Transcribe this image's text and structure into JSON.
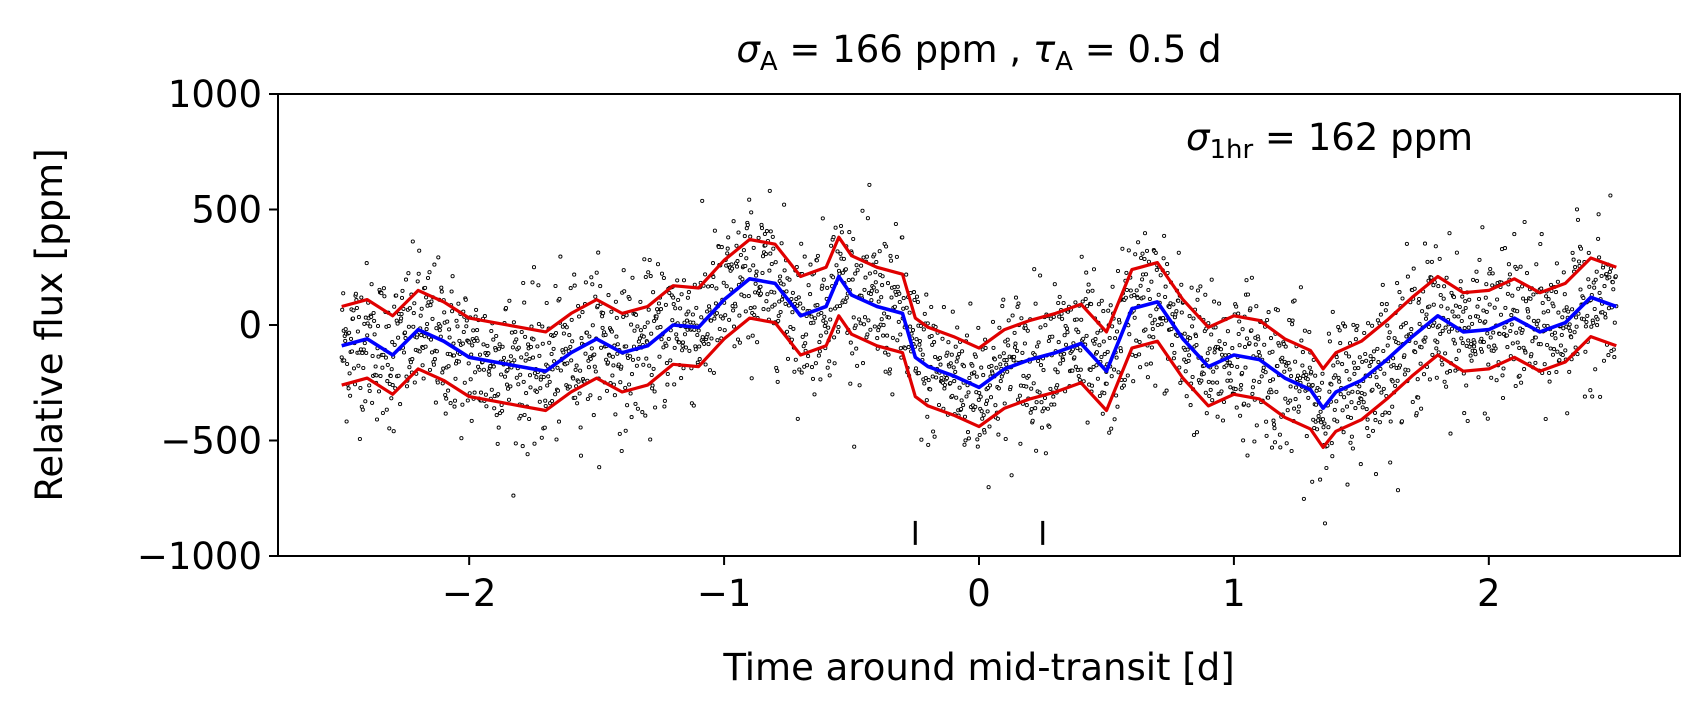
{
  "chart_data": {
    "type": "scatter",
    "title_parts": {
      "sigma": "σ",
      "sigma_sub": "A",
      "sigma_rest": " = 166 ppm , ",
      "tau": "τ",
      "tau_sub": "A",
      "tau_rest": " = 0.5 d"
    },
    "annotation_parts": {
      "sigma": "σ",
      "sub": "1hr",
      "rest": " = 162 ppm"
    },
    "xlabel": "Time around mid-transit [d]",
    "ylabel": "Relative flux [ppm]",
    "xlim": [
      -2.75,
      2.75
    ],
    "ylim": [
      -1000,
      1000
    ],
    "xticks": [
      {
        "value": -2,
        "label": "−2"
      },
      {
        "value": -1,
        "label": "−1"
      },
      {
        "value": 0,
        "label": "0"
      },
      {
        "value": 1,
        "label": "1"
      },
      {
        "value": 2,
        "label": "2"
      }
    ],
    "yticks": [
      {
        "value": 1000,
        "label": "1000"
      },
      {
        "value": 500,
        "label": "500"
      },
      {
        "value": 0,
        "label": "0"
      },
      {
        "value": -500,
        "label": "−500"
      },
      {
        "value": -1000,
        "label": "−1000"
      }
    ],
    "grid": false,
    "legend": "none",
    "data_range_x": [
      -2.5,
      2.5
    ],
    "scatter_spread_ppm": 162,
    "transit_markers_x": [
      -0.25,
      0.25
    ],
    "transit_marker_y": -900,
    "colors": {
      "points": "#000000",
      "model_band": "#e00000",
      "mean_model": "#0000ff"
    },
    "series": [
      {
        "role": "mean model",
        "color": "#0000ff",
        "x": [
          -2.5,
          -2.4,
          -2.3,
          -2.2,
          -2.1,
          -2.0,
          -1.9,
          -1.8,
          -1.7,
          -1.6,
          -1.5,
          -1.4,
          -1.3,
          -1.2,
          -1.1,
          -1.0,
          -0.9,
          -0.8,
          -0.7,
          -0.6,
          -0.55,
          -0.5,
          -0.4,
          -0.3,
          -0.25,
          -0.2,
          -0.1,
          0.0,
          0.1,
          0.2,
          0.3,
          0.4,
          0.5,
          0.6,
          0.7,
          0.8,
          0.9,
          1.0,
          1.1,
          1.2,
          1.3,
          1.35,
          1.4,
          1.5,
          1.6,
          1.7,
          1.8,
          1.9,
          2.0,
          2.1,
          2.2,
          2.3,
          2.4,
          2.5
        ],
        "y": [
          -90,
          -60,
          -130,
          -20,
          -70,
          -140,
          -160,
          -180,
          -200,
          -120,
          -60,
          -120,
          -90,
          0,
          -10,
          110,
          200,
          180,
          40,
          80,
          210,
          130,
          80,
          50,
          -140,
          -180,
          -220,
          -270,
          -190,
          -150,
          -120,
          -80,
          -200,
          70,
          100,
          -60,
          -180,
          -130,
          -150,
          -230,
          -280,
          -360,
          -290,
          -240,
          -150,
          -50,
          40,
          -30,
          -20,
          30,
          -30,
          10,
          120,
          80
        ]
      },
      {
        "role": "upper band",
        "color": "#e00000",
        "x": [
          -2.5,
          -2.4,
          -2.3,
          -2.2,
          -2.1,
          -2.0,
          -1.9,
          -1.8,
          -1.7,
          -1.6,
          -1.5,
          -1.4,
          -1.3,
          -1.2,
          -1.1,
          -1.0,
          -0.9,
          -0.8,
          -0.7,
          -0.6,
          -0.55,
          -0.5,
          -0.4,
          -0.3,
          -0.25,
          -0.2,
          -0.1,
          0.0,
          0.1,
          0.2,
          0.3,
          0.4,
          0.5,
          0.6,
          0.7,
          0.8,
          0.9,
          1.0,
          1.1,
          1.2,
          1.3,
          1.35,
          1.4,
          1.5,
          1.6,
          1.7,
          1.8,
          1.9,
          2.0,
          2.1,
          2.2,
          2.3,
          2.4,
          2.5
        ],
        "y": [
          80,
          110,
          40,
          150,
          100,
          30,
          10,
          -10,
          -30,
          50,
          110,
          50,
          80,
          170,
          160,
          280,
          370,
          350,
          210,
          250,
          380,
          300,
          250,
          220,
          30,
          -10,
          -50,
          -100,
          -20,
          20,
          50,
          90,
          -30,
          240,
          270,
          110,
          -10,
          40,
          20,
          -60,
          -110,
          -190,
          -120,
          -70,
          20,
          120,
          210,
          140,
          150,
          200,
          140,
          180,
          290,
          250
        ]
      },
      {
        "role": "lower band",
        "color": "#e00000",
        "x": [
          -2.5,
          -2.4,
          -2.3,
          -2.2,
          -2.1,
          -2.0,
          -1.9,
          -1.8,
          -1.7,
          -1.6,
          -1.5,
          -1.4,
          -1.3,
          -1.2,
          -1.1,
          -1.0,
          -0.9,
          -0.8,
          -0.7,
          -0.6,
          -0.55,
          -0.5,
          -0.4,
          -0.3,
          -0.25,
          -0.2,
          -0.1,
          0.0,
          0.1,
          0.2,
          0.3,
          0.4,
          0.5,
          0.6,
          0.7,
          0.8,
          0.9,
          1.0,
          1.1,
          1.2,
          1.3,
          1.35,
          1.4,
          1.5,
          1.6,
          1.7,
          1.8,
          1.9,
          2.0,
          2.1,
          2.2,
          2.3,
          2.4,
          2.5
        ],
        "y": [
          -260,
          -230,
          -300,
          -190,
          -240,
          -310,
          -330,
          -350,
          -370,
          -290,
          -230,
          -290,
          -260,
          -170,
          -180,
          -60,
          30,
          10,
          -130,
          -90,
          40,
          -40,
          -90,
          -120,
          -310,
          -350,
          -390,
          -440,
          -360,
          -320,
          -290,
          -250,
          -370,
          -100,
          -70,
          -230,
          -350,
          -300,
          -320,
          -400,
          -450,
          -530,
          -460,
          -410,
          -320,
          -220,
          -130,
          -200,
          -190,
          -140,
          -200,
          -160,
          -50,
          -90
        ]
      }
    ]
  }
}
